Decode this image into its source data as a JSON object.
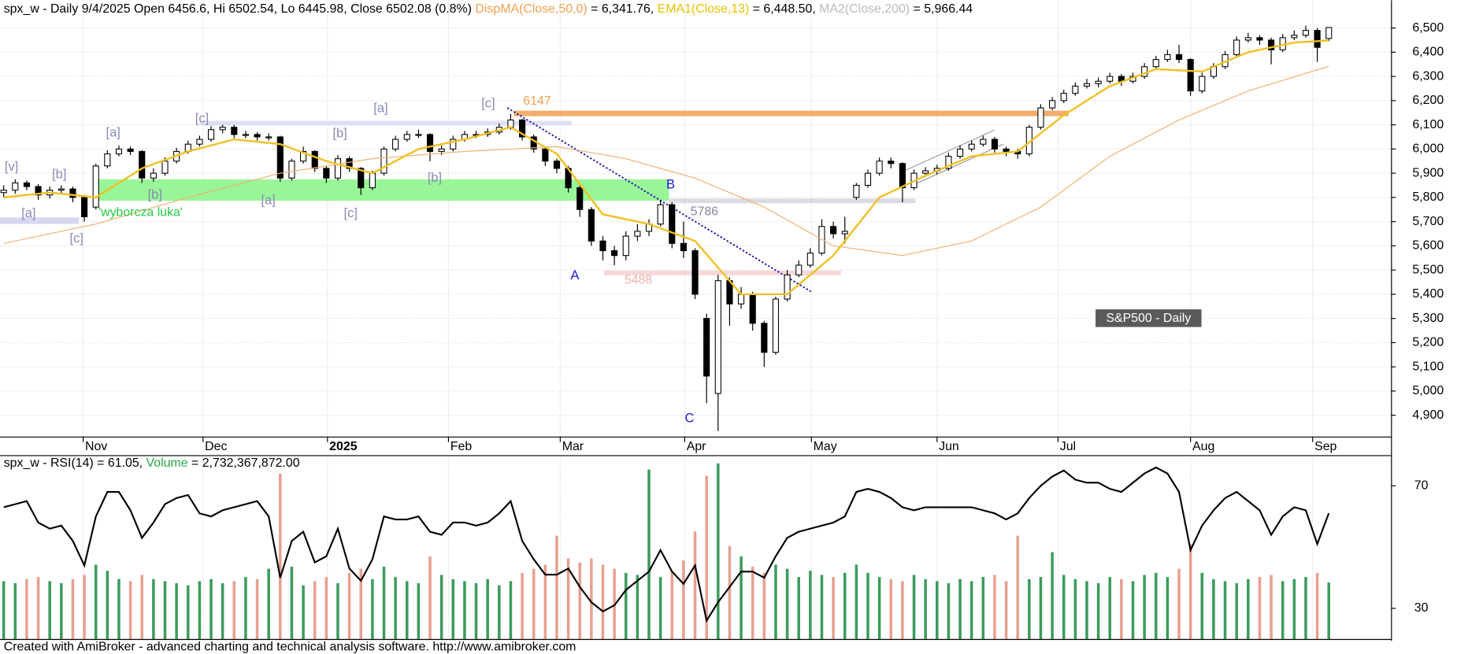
{
  "chart_data": [
    {
      "type": "candlestick",
      "header": [
        {
          "text": "spx_w - Daily 9/4/2025 Open 6456.6, Hi 6502.54, Lo 6445.98, Close 6502.08 (0.8%) ",
          "color": "#000000"
        },
        {
          "text": "DispMA(Close,50,0)",
          "color": "#f0a050"
        },
        {
          "text": " = 6,341.76, ",
          "color": "#000000"
        },
        {
          "text": "EMA1(Close,13)",
          "color": "#e8c000"
        },
        {
          "text": " = 6,448.50, ",
          "color": "#000000"
        },
        {
          "text": "MA2(Close,200)",
          "color": "#bbbbbb"
        },
        {
          "text": " = 5,966.44",
          "color": "#000000"
        }
      ],
      "xlim": [
        -0.32,
        120.4
      ],
      "xticks": [
        {
          "value": 6.9,
          "label": "Nov"
        },
        {
          "value": 17.3,
          "label": "Dec"
        },
        {
          "value": 28.1,
          "label": "2025"
        },
        {
          "value": 38.6,
          "label": "Feb"
        },
        {
          "value": 48.3,
          "label": "Mar"
        },
        {
          "value": 59.1,
          "label": "Apr"
        },
        {
          "value": 70.1,
          "label": "May"
        },
        {
          "value": 81.0,
          "label": "Jun"
        },
        {
          "value": 91.5,
          "label": "Jul"
        },
        {
          "value": 103.0,
          "label": "Aug"
        },
        {
          "value": 113.6,
          "label": "Sep"
        }
      ],
      "ylim": [
        4812,
        6615
      ],
      "yticks": [
        {
          "value": 4900,
          "label": "4,900"
        },
        {
          "value": 5000,
          "label": "5,000"
        },
        {
          "value": 5100,
          "label": "5,100"
        },
        {
          "value": 5200,
          "label": "5,200"
        },
        {
          "value": 5300,
          "label": "5,300"
        },
        {
          "value": 5400,
          "label": "5,400"
        },
        {
          "value": 5500,
          "label": "5,500"
        },
        {
          "value": 5600,
          "label": "5,600"
        },
        {
          "value": 5700,
          "label": "5,700"
        },
        {
          "value": 5800,
          "label": "5,800"
        },
        {
          "value": 5900,
          "label": "5,900"
        },
        {
          "value": 6000,
          "label": "6,000"
        },
        {
          "value": 6100,
          "label": "6,100"
        },
        {
          "value": 6200,
          "label": "6,200"
        },
        {
          "value": 6300,
          "label": "6,300"
        },
        {
          "value": 6400,
          "label": "6,400"
        },
        {
          "value": 6500,
          "label": "6,500"
        }
      ],
      "grid": true,
      "open": [
        5820,
        5830,
        5860,
        5845,
        5810,
        5830,
        5835,
        5800,
        5760,
        5930,
        5980,
        6000,
        5990,
        5880,
        5900,
        5950,
        5990,
        6020,
        6040,
        6080,
        6090,
        6060,
        6060,
        6050,
        6050,
        5880,
        5950,
        5990,
        5920,
        5880,
        5960,
        5920,
        5840,
        5900,
        6000,
        6040,
        6060,
        6060,
        5990,
        6000,
        6040,
        6060,
        6060,
        6070,
        6090,
        6120,
        6050,
        6000,
        5950,
        5920,
        5840,
        5750,
        5620,
        5580,
        5560,
        5640,
        5660,
        5690,
        5770,
        5610,
        5580,
        5300,
        4990,
        5456,
        5360,
        5400,
        5280,
        5160,
        5380,
        5480,
        5520,
        5570,
        5680,
        5650,
        5800,
        5850,
        5900,
        5950,
        5940,
        5840,
        5900,
        5910,
        5920,
        5970,
        6000,
        6020,
        6040,
        6000,
        5990,
        5980,
        6090,
        6170,
        6200,
        6230,
        6260,
        6270,
        6280,
        6300,
        6280,
        6300,
        6340,
        6370,
        6390,
        6370,
        6240,
        6300,
        6340,
        6390,
        6450,
        6460,
        6450,
        6410,
        6460,
        6470,
        6490,
        6456.6
      ],
      "high": [
        5850,
        5875,
        5870,
        5855,
        5845,
        5850,
        5845,
        5810,
        5940,
        5995,
        6015,
        6010,
        5995,
        5920,
        5965,
        6005,
        6035,
        6055,
        6095,
        6100,
        6100,
        6075,
        6070,
        6065,
        6055,
        5960,
        6010,
        5995,
        5930,
        5975,
        5970,
        5925,
        5910,
        6010,
        6055,
        6075,
        6080,
        6065,
        6015,
        6055,
        6075,
        6075,
        6085,
        6105,
        6145,
        6125,
        6060,
        6010,
        5960,
        5930,
        5850,
        5760,
        5640,
        5600,
        5660,
        5690,
        5710,
        5790,
        5780,
        5700,
        5590,
        5320,
        5480,
        5470,
        5430,
        5410,
        5290,
        5390,
        5500,
        5540,
        5590,
        5710,
        5700,
        5720,
        5860,
        5915,
        5965,
        5965,
        5945,
        5915,
        5925,
        5935,
        5985,
        6015,
        6035,
        6055,
        6050,
        6010,
        6000,
        6100,
        6185,
        6215,
        6245,
        6275,
        6290,
        6295,
        6315,
        6310,
        6315,
        6355,
        6385,
        6410,
        6430,
        6375,
        6315,
        6355,
        6405,
        6465,
        6480,
        6470,
        6460,
        6475,
        6490,
        6510,
        6500,
        6502.54
      ],
      "low": [
        5800,
        5815,
        5830,
        5790,
        5795,
        5815,
        5780,
        5700,
        5750,
        5920,
        5970,
        5975,
        5860,
        5865,
        5890,
        5940,
        5980,
        6010,
        6030,
        6065,
        6045,
        6045,
        6035,
        6035,
        5865,
        5870,
        5940,
        5905,
        5860,
        5870,
        5905,
        5810,
        5830,
        5890,
        5990,
        6030,
        6045,
        5950,
        5975,
        5990,
        6030,
        6045,
        6050,
        6060,
        6080,
        6035,
        5985,
        5930,
        5900,
        5820,
        5720,
        5600,
        5540,
        5520,
        5540,
        5620,
        5640,
        5680,
        5590,
        5550,
        5380,
        4950,
        4835,
        5270,
        5340,
        5250,
        5100,
        5150,
        5370,
        5470,
        5510,
        5560,
        5630,
        5610,
        5790,
        5840,
        5890,
        5920,
        5780,
        5830,
        5885,
        5895,
        5910,
        5960,
        5990,
        6010,
        5985,
        5970,
        5960,
        5970,
        6080,
        6160,
        6190,
        6220,
        6250,
        6255,
        6270,
        6260,
        6270,
        6290,
        6330,
        6360,
        6355,
        6220,
        6230,
        6290,
        6330,
        6380,
        6440,
        6430,
        6350,
        6400,
        6450,
        6460,
        6360,
        6445.98
      ],
      "close": [
        5830,
        5860,
        5845,
        5810,
        5830,
        5835,
        5800,
        5720,
        5930,
        5980,
        6000,
        5990,
        5880,
        5900,
        5950,
        5990,
        6020,
        6040,
        6080,
        6090,
        6060,
        6060,
        6050,
        6050,
        5880,
        5950,
        5990,
        5920,
        5880,
        5960,
        5920,
        5840,
        5900,
        6000,
        6040,
        6060,
        6060,
        5990,
        6000,
        6040,
        6060,
        6060,
        6070,
        6090,
        6120,
        6050,
        6000,
        5950,
        5920,
        5840,
        5750,
        5620,
        5580,
        5560,
        5640,
        5660,
        5690,
        5770,
        5610,
        5580,
        5400,
        5062,
        5456,
        5360,
        5400,
        5280,
        5160,
        5380,
        5480,
        5520,
        5570,
        5680,
        5650,
        5660,
        5850,
        5900,
        5950,
        5940,
        5840,
        5900,
        5910,
        5920,
        5970,
        6000,
        6020,
        6040,
        6000,
        5990,
        5980,
        6090,
        6170,
        6200,
        6230,
        6260,
        6270,
        6280,
        6300,
        6280,
        6300,
        6340,
        6370,
        6390,
        6370,
        6240,
        6300,
        6340,
        6390,
        6450,
        6460,
        6450,
        6410,
        6460,
        6470,
        6490,
        6420,
        6502.08
      ],
      "series": [
        {
          "color": "#f0b070",
          "x": [
            0,
            8,
            16,
            24,
            32,
            40,
            48,
            54,
            60,
            66,
            72,
            78,
            84,
            90,
            96,
            102,
            108,
            115
          ],
          "values": [
            5610,
            5690,
            5800,
            5900,
            5960,
            5990,
            6010,
            5960,
            5880,
            5760,
            5600,
            5560,
            5620,
            5760,
            5970,
            6120,
            6240,
            6341.76
          ]
        },
        {
          "color": "#f0c020",
          "x": [
            0,
            4,
            8,
            12,
            16,
            20,
            24,
            28,
            32,
            36,
            40,
            44,
            48,
            52,
            56,
            60,
            64,
            68,
            72,
            76,
            80,
            84,
            88,
            92,
            96,
            100,
            104,
            108,
            112,
            115
          ],
          "values": [
            5800,
            5820,
            5800,
            5920,
            5990,
            6040,
            6020,
            5950,
            5900,
            6000,
            6040,
            6090,
            5980,
            5730,
            5690,
            5620,
            5400,
            5400,
            5560,
            5800,
            5890,
            5970,
            5990,
            6140,
            6260,
            6330,
            6320,
            6400,
            6440,
            6448.5
          ]
        }
      ],
      "levels": [
        {
          "value": 6147,
          "label": "6147",
          "color": "#f0a050"
        },
        {
          "value": 5786,
          "label": "5786",
          "color": "#8888aa"
        },
        {
          "value": 5488,
          "label": "5488",
          "color": "#f0b0b0"
        }
      ],
      "annotations": [
        "[v]",
        "[a]",
        "[c]",
        "[b]",
        "[a]",
        "[b]",
        "[c]",
        "[a]",
        "[b]",
        "[c]",
        "[a]",
        "[b]",
        "[c]",
        "A",
        "B",
        "C",
        "'wyborcza luka'",
        "S&P500 - Daily"
      ]
    },
    {
      "type": "line",
      "header": [
        {
          "text": "spx_w - RSI(14) = 61.05, ",
          "color": "#000000"
        },
        {
          "text": "Volume",
          "color": "#22aa44"
        },
        {
          "text": " = 2,732,367,872.00",
          "color": "#000000"
        }
      ],
      "ylim": [
        20,
        80
      ],
      "yticks": [
        30,
        70
      ],
      "y2lim": [
        0,
        8.9
      ],
      "series": [
        {
          "color": "#000000",
          "values": [
            63,
            64,
            65,
            58,
            56,
            57,
            52,
            44,
            60,
            68,
            68,
            62,
            53,
            58,
            64,
            66,
            67,
            61,
            60,
            62,
            63,
            64,
            65,
            60,
            40,
            52,
            55,
            45,
            47,
            56,
            43,
            39,
            46,
            60,
            59,
            59,
            60,
            55,
            54,
            58,
            58,
            57,
            58,
            61,
            65,
            52,
            46,
            41,
            41,
            43,
            37,
            32,
            29,
            31,
            36,
            39,
            42,
            49,
            42,
            38,
            44,
            26,
            32,
            37,
            42,
            42,
            40,
            47,
            53,
            55,
            56,
            57,
            58,
            60,
            68,
            69,
            68,
            66,
            63,
            62,
            63,
            63,
            63,
            63,
            63,
            62,
            61,
            59,
            61,
            66,
            70,
            73,
            75,
            72,
            71,
            71,
            69,
            68,
            71,
            74,
            76,
            74,
            68,
            49,
            57,
            62,
            66,
            68,
            65,
            62,
            54,
            60,
            63,
            62,
            51,
            61.05
          ]
        },
        {
          "type": "bar",
          "axis": "y2",
          "colors": [
            "#3c9c5c",
            "#e8a090"
          ],
          "values": [
            2.8,
            2.7,
            2.9,
            3.0,
            2.8,
            2.7,
            2.9,
            3.1,
            3.6,
            3.3,
            2.9,
            2.8,
            3.1,
            2.9,
            2.8,
            2.7,
            2.6,
            2.8,
            2.9,
            2.7,
            2.8,
            3.0,
            2.9,
            3.4,
            8.0,
            3.5,
            2.6,
            2.8,
            3.0,
            2.7,
            3.2,
            3.4,
            2.9,
            3.5,
            3.0,
            2.8,
            2.7,
            4.0,
            3.1,
            2.9,
            2.8,
            2.7,
            2.9,
            2.6,
            2.8,
            3.2,
            3.4,
            3.6,
            5.0,
            3.9,
            3.7,
            3.9,
            3.6,
            3.4,
            3.2,
            3.1,
            8.2,
            3.0,
            3.3,
            3.8,
            5.2,
            7.9,
            8.5,
            4.5,
            4.0,
            3.5,
            3.2,
            3.6,
            3.4,
            3.0,
            3.3,
            3.1,
            3.0,
            3.2,
            3.6,
            3.2,
            3.0,
            2.9,
            2.8,
            3.1,
            2.9,
            2.8,
            2.7,
            2.9,
            2.8,
            3.0,
            3.1,
            2.8,
            5.0,
            2.9,
            3.0,
            4.2,
            3.1,
            2.9,
            2.8,
            2.7,
            3.0,
            2.9,
            2.8,
            3.1,
            3.2,
            3.0,
            3.4,
            4.6,
            3.2,
            2.9,
            2.8,
            2.7,
            2.9,
            3.0,
            3.1,
            2.8,
            2.9,
            3.0,
            3.2,
            2.732367872
          ]
        }
      ]
    }
  ],
  "footer": "Created with AmiBroker - advanced charting and technical analysis software. http://www.amibroker.com"
}
